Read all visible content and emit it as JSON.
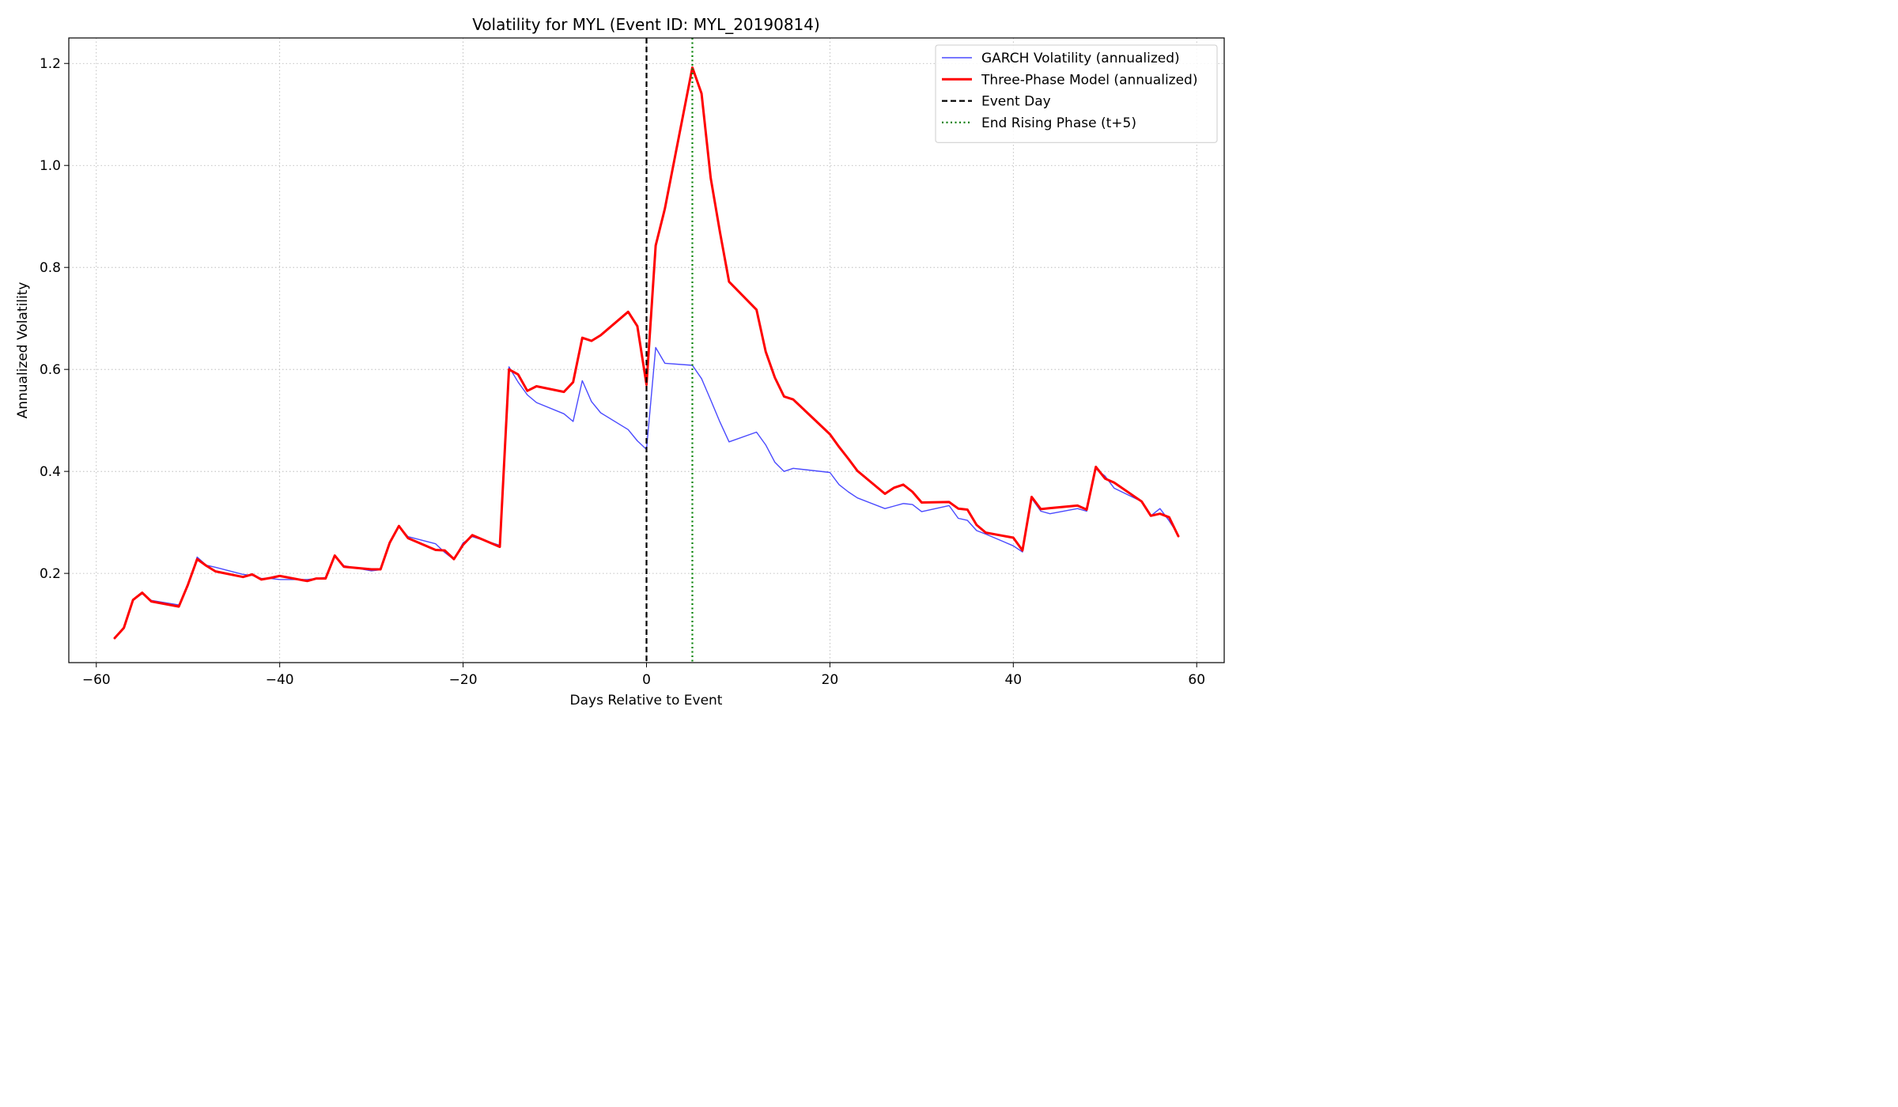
{
  "chart_data": {
    "type": "line",
    "title": "Volatility for MYL (Event ID: MYL_20190814)",
    "xlabel": "Days Relative to Event",
    "ylabel": "Annualized Volatility",
    "xlim": [
      -63,
      63
    ],
    "ylim": [
      0.025,
      1.25
    ],
    "xticks": [
      -60,
      -40,
      -20,
      0,
      20,
      40,
      60
    ],
    "xtick_labels": [
      "−60",
      "−40",
      "−20",
      "0",
      "20",
      "40",
      "60"
    ],
    "yticks": [
      0.2,
      0.4,
      0.6,
      0.8,
      1.0,
      1.2
    ],
    "ytick_labels": [
      "0.2",
      "0.4",
      "0.6",
      "0.8",
      "1.0",
      "1.2"
    ],
    "grid": true,
    "legend_position": "upper right",
    "series": [
      {
        "name": "GARCH Volatility (annualized)",
        "color": "#4a4aff",
        "style": "solid-thin",
        "x": [
          -58,
          -57,
          -56,
          -55,
          -54,
          -51,
          -50,
          -49,
          -48,
          -47,
          -44,
          -43,
          -42,
          -41,
          -40,
          -37,
          -36,
          -35,
          -34,
          -33,
          -30,
          -29,
          -28,
          -27,
          -26,
          -23,
          -22,
          -21,
          -20,
          -19,
          -16,
          -15,
          -14,
          -13,
          -12,
          -9,
          -8,
          -7,
          -6,
          -5,
          -2,
          -1,
          0,
          1,
          2,
          5,
          6,
          7,
          8,
          9,
          12,
          13,
          14,
          15,
          16,
          20,
          21,
          22,
          23,
          26,
          27,
          28,
          29,
          30,
          33,
          34,
          35,
          36,
          37,
          40,
          41,
          42,
          43,
          44,
          47,
          48,
          49,
          50,
          51,
          54,
          55,
          56,
          57,
          58
        ],
        "y": [
          0.073,
          0.093,
          0.148,
          0.16,
          0.147,
          0.138,
          0.175,
          0.232,
          0.216,
          0.212,
          0.198,
          0.196,
          0.19,
          0.19,
          0.188,
          0.188,
          0.19,
          0.192,
          0.233,
          0.215,
          0.205,
          0.207,
          0.26,
          0.293,
          0.272,
          0.258,
          0.241,
          0.227,
          0.26,
          0.272,
          0.255,
          0.605,
          0.575,
          0.55,
          0.535,
          0.513,
          0.498,
          0.578,
          0.537,
          0.515,
          0.482,
          0.46,
          0.443,
          0.643,
          0.612,
          0.608,
          0.582,
          0.54,
          0.497,
          0.458,
          0.477,
          0.452,
          0.418,
          0.4,
          0.406,
          0.398,
          0.374,
          0.36,
          0.348,
          0.327,
          0.332,
          0.337,
          0.335,
          0.321,
          0.333,
          0.308,
          0.304,
          0.284,
          0.277,
          0.254,
          0.242,
          0.347,
          0.322,
          0.317,
          0.327,
          0.322,
          0.405,
          0.391,
          0.367,
          0.341,
          0.313,
          0.327,
          0.303,
          0.275
        ]
      },
      {
        "name": "Three-Phase Model (annualized)",
        "color": "#ff0000",
        "style": "solid-thick",
        "x": [
          -58,
          -57,
          -56,
          -55,
          -54,
          -51,
          -50,
          -49,
          -48,
          -47,
          -44,
          -43,
          -42,
          -41,
          -40,
          -37,
          -36,
          -35,
          -34,
          -33,
          -30,
          -29,
          -28,
          -27,
          -26,
          -23,
          -22,
          -21,
          -20,
          -19,
          -16,
          -15,
          -14,
          -13,
          -12,
          -9,
          -8,
          -7,
          -6,
          -5,
          -2,
          -1,
          0,
          1,
          2,
          5,
          6,
          7,
          8,
          9,
          12,
          13,
          14,
          15,
          16,
          20,
          21,
          22,
          23,
          26,
          27,
          28,
          29,
          30,
          33,
          34,
          35,
          36,
          37,
          40,
          41,
          42,
          43,
          44,
          47,
          48,
          49,
          50,
          51,
          54,
          55,
          56,
          57,
          58
        ],
        "y": [
          0.073,
          0.093,
          0.148,
          0.162,
          0.145,
          0.135,
          0.178,
          0.228,
          0.215,
          0.204,
          0.193,
          0.198,
          0.188,
          0.191,
          0.195,
          0.185,
          0.19,
          0.19,
          0.235,
          0.213,
          0.208,
          0.208,
          0.26,
          0.293,
          0.269,
          0.246,
          0.245,
          0.228,
          0.256,
          0.275,
          0.252,
          0.6,
          0.59,
          0.558,
          0.567,
          0.556,
          0.575,
          0.662,
          0.656,
          0.667,
          0.713,
          0.685,
          0.57,
          0.843,
          0.915,
          1.192,
          1.141,
          0.975,
          0.87,
          0.772,
          0.717,
          0.635,
          0.584,
          0.547,
          0.541,
          0.473,
          0.448,
          0.425,
          0.401,
          0.356,
          0.368,
          0.374,
          0.36,
          0.339,
          0.34,
          0.327,
          0.325,
          0.295,
          0.28,
          0.27,
          0.245,
          0.35,
          0.326,
          0.328,
          0.333,
          0.325,
          0.409,
          0.386,
          0.378,
          0.341,
          0.313,
          0.317,
          0.31,
          0.273
        ]
      }
    ],
    "reference_lines": [
      {
        "name": "Event Day",
        "x": 0,
        "color": "#000000",
        "style": "dashed"
      },
      {
        "name": "End Rising Phase (t+5)",
        "x": 5,
        "color": "#008000",
        "style": "dotted"
      }
    ]
  }
}
